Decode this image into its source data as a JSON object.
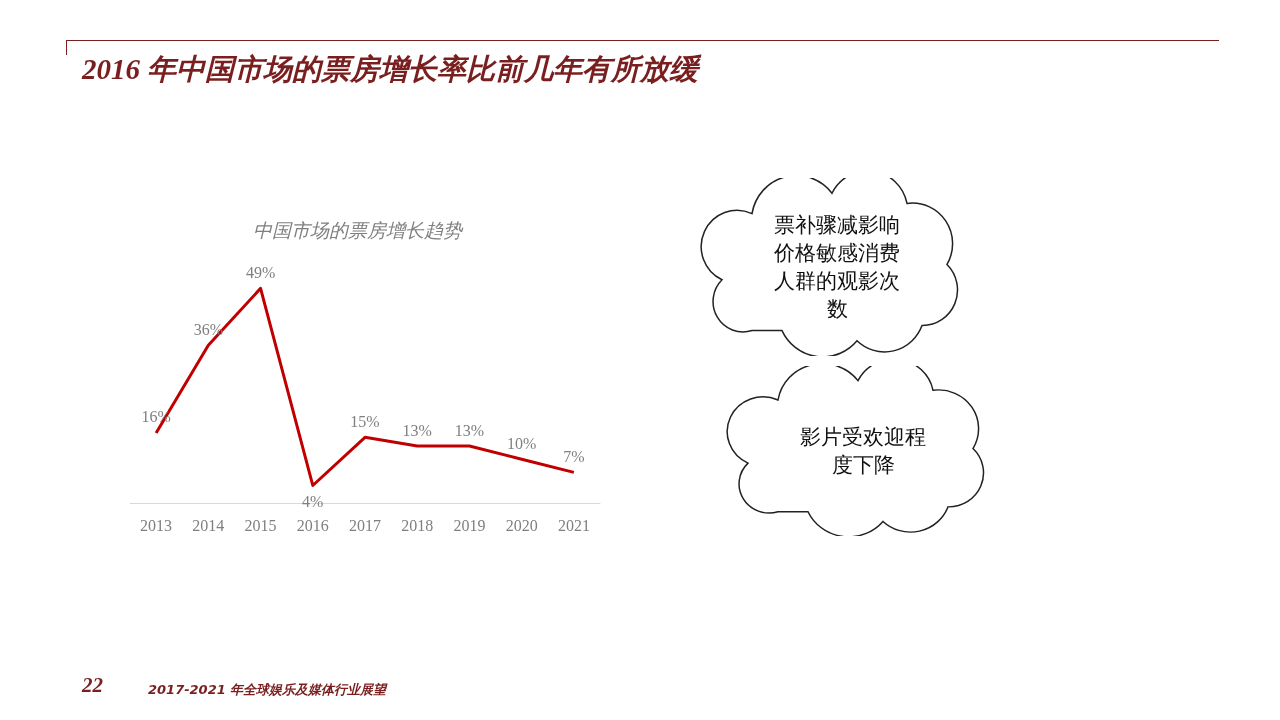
{
  "chart_data": {
    "type": "line",
    "title": "2016 年中国市场的票房增长率比前几年有所放缓",
    "subtitle": "中国市场的票房增长趋势",
    "categories": [
      "2013",
      "2014",
      "2015",
      "2016",
      "2017",
      "2018",
      "2019",
      "2020",
      "2021"
    ],
    "series": [
      {
        "color": "#c00000",
        "values": [
          16,
          36,
          49,
          4,
          15,
          13,
          13,
          10,
          7
        ],
        "value_labels": [
          "16%",
          "36%",
          "49%",
          "4%",
          "15%",
          "13%",
          "13%",
          "10%",
          "7%"
        ]
      }
    ],
    "tick_labels": "x",
    "grid": false,
    "marker": "none",
    "line_style": "solid",
    "annotations": [
      "票补骤减影响价格敏感消费人群的观影次数",
      "影片受欢迎程度下降",
      "22",
      "2017-2021 年全球娱乐及媒体行业展望"
    ]
  }
}
